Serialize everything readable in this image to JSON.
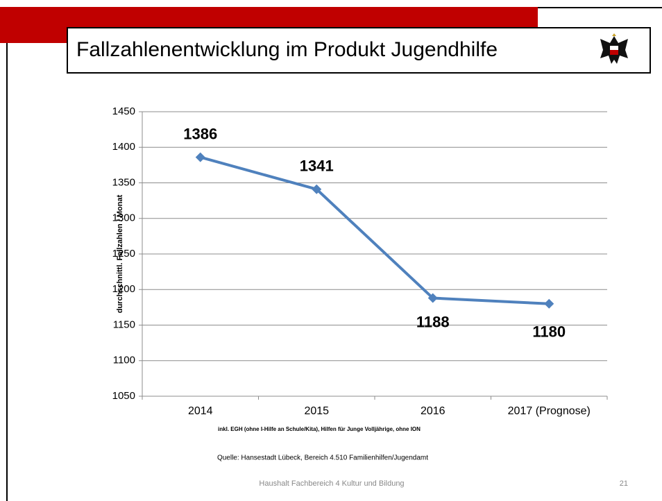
{
  "title": "Fallzahlenentwicklung im Produkt Jugendhilfe",
  "footer": "Haushalt Fachbereich 4 Kultur und Bildung",
  "page_number": "21",
  "chart_data": {
    "type": "line",
    "y_label": "durchschnittl. Fallzahlen / Monat",
    "x_note": "inkl. EGH (ohne I-Hilfe an Schule/Kita), Hilfen für Junge Volljährige, ohne ION",
    "source": "Quelle: Hansestadt Lübeck, Bereich 4.510 Familienhilfen/Jugendamt",
    "categories": [
      "2014",
      "2015",
      "2016",
      "2017 (Prognose)"
    ],
    "series": [
      {
        "name": "Fallzahlen",
        "color": "#4f81bd",
        "values": [
          1386,
          1341,
          1188,
          1180
        ]
      }
    ],
    "ylim": [
      1050,
      1450
    ],
    "yticks": [
      1050,
      1100,
      1150,
      1200,
      1250,
      1300,
      1350,
      1400,
      1450
    ],
    "grid": true
  }
}
